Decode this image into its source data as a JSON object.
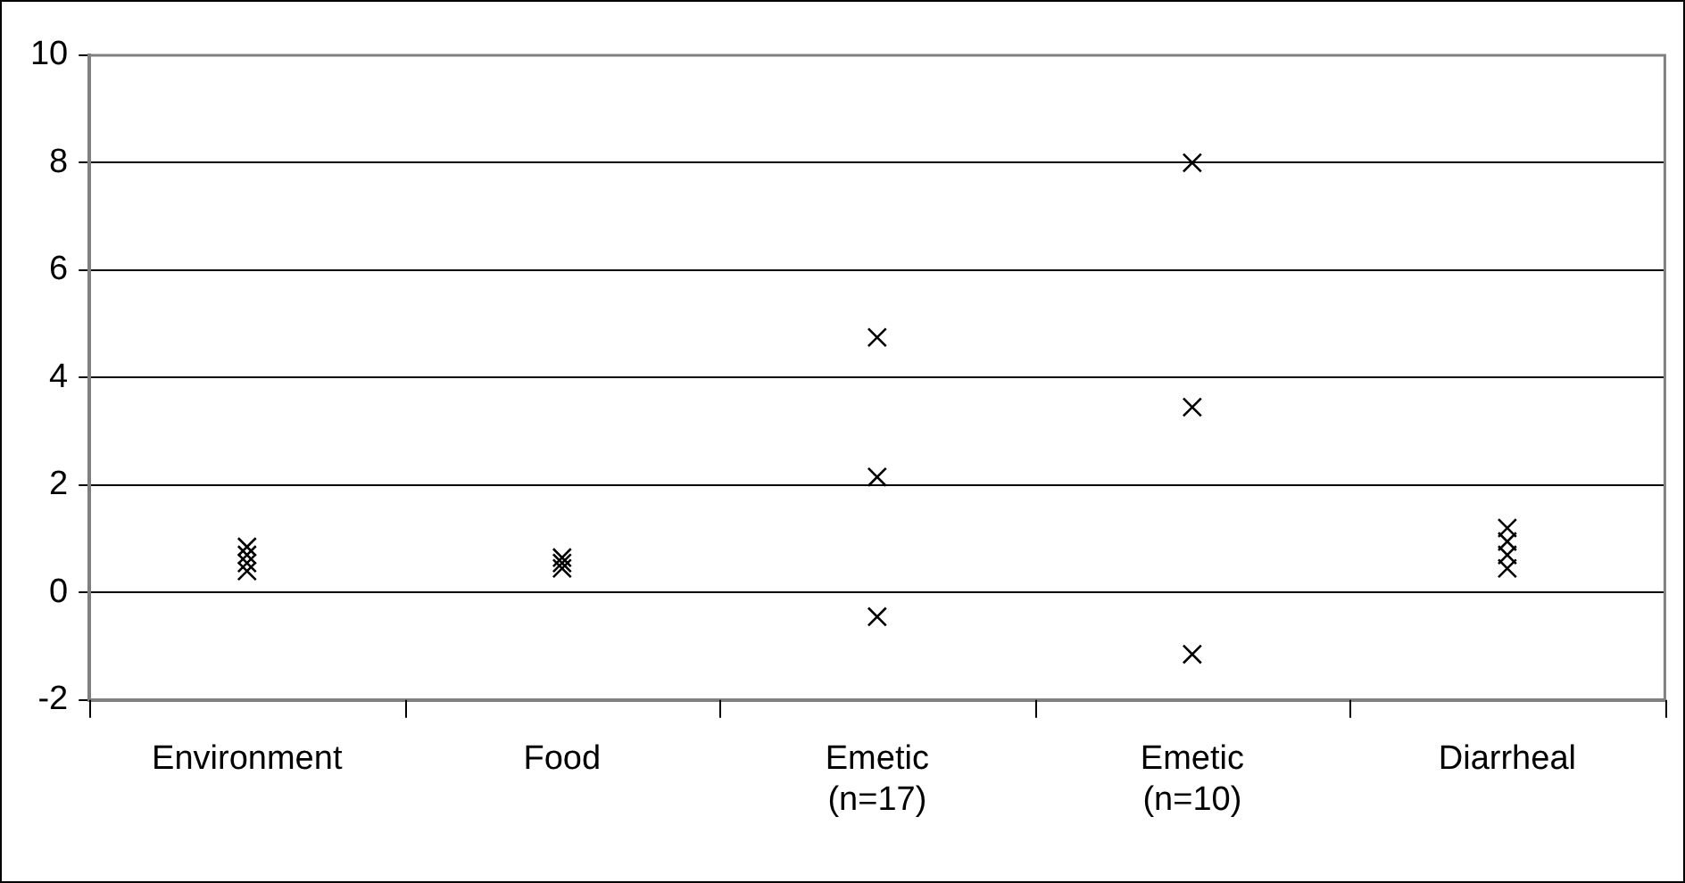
{
  "chart_data": {
    "type": "scatter",
    "categories": [
      "Environment",
      "Food",
      "Emetic\n(n=17)",
      "Emetic\n(n=10)",
      "Diarrheal"
    ],
    "series": [
      {
        "color": "#000000",
        "x": [
          "Environment",
          "Environment",
          "Environment",
          "Environment",
          "Food",
          "Food",
          "Food",
          "Emetic\n(n=17)",
          "Emetic\n(n=17)",
          "Emetic\n(n=17)",
          "Emetic\n(n=10)",
          "Emetic\n(n=10)",
          "Emetic\n(n=10)",
          "Diarrheal",
          "Diarrheal",
          "Diarrheal",
          "Diarrheal"
        ],
        "values": [
          0.85,
          0.7,
          0.55,
          0.4,
          0.65,
          0.55,
          0.45,
          4.75,
          2.15,
          -0.45,
          8,
          3.45,
          -1.15,
          1.2,
          0.95,
          0.7,
          0.45
        ]
      }
    ],
    "ylim": [
      -2,
      10
    ],
    "yticks": [
      -2,
      0,
      2,
      4,
      6,
      8,
      10
    ],
    "grid": "y",
    "legend": false,
    "marker": "cross"
  }
}
